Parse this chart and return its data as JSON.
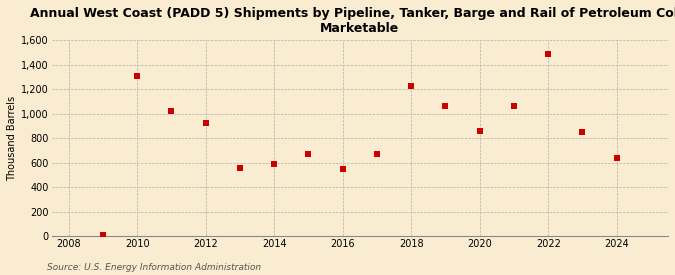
{
  "title": "Annual West Coast (PADD 5) Shipments by Pipeline, Tanker, Barge and Rail of Petroleum Coke\nMarketable",
  "ylabel": "Thousand Barrels",
  "source": "Source: U.S. Energy Information Administration",
  "background_color": "#faecd0",
  "plot_background_color": "#faecd0",
  "years": [
    2009,
    2010,
    2011,
    2012,
    2013,
    2014,
    2015,
    2016,
    2017,
    2018,
    2019,
    2020,
    2021,
    2022,
    2023,
    2024
  ],
  "values": [
    5,
    1310,
    1020,
    920,
    560,
    590,
    670,
    550,
    670,
    1230,
    1060,
    860,
    1060,
    1490,
    850,
    640
  ],
  "marker_color": "#cc0000",
  "marker_size": 5,
  "ylim": [
    0,
    1600
  ],
  "yticks": [
    0,
    200,
    400,
    600,
    800,
    1000,
    1200,
    1400,
    1600
  ],
  "xlim": [
    2007.5,
    2025.5
  ],
  "xticks": [
    2008,
    2010,
    2012,
    2014,
    2016,
    2018,
    2020,
    2022,
    2024
  ],
  "title_fontsize": 9,
  "ylabel_fontsize": 7,
  "tick_fontsize": 7,
  "source_fontsize": 6.5
}
